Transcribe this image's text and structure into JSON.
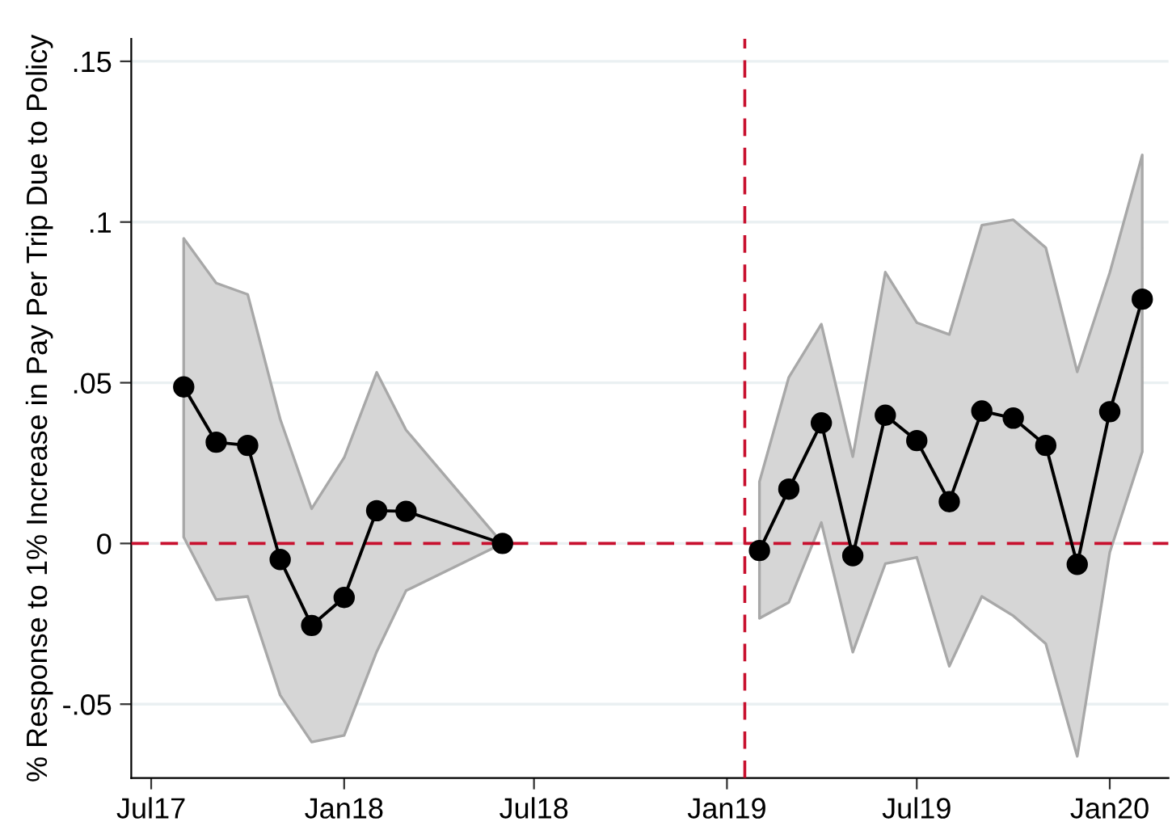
{
  "chart_data": {
    "type": "line",
    "ylabel": "% Response to 1% Increase in Pay Per Trip Due to Policy",
    "series": [
      {
        "color": "#000000",
        "x": [
          "2017-08-01",
          "2017-09-01",
          "2017-10-01",
          "2017-11-01",
          "2017-12-01",
          "2018-01-01",
          "2018-02-01",
          "2018-03-01",
          "2018-06-01"
        ],
        "values": [
          0.0487,
          0.0315,
          0.0305,
          -0.005,
          -0.0255,
          -0.0168,
          0.0102,
          0.01,
          0
        ],
        "lower": [
          0.002,
          -0.0175,
          -0.0165,
          -0.0472,
          -0.0618,
          -0.0597,
          -0.0337,
          -0.0147,
          0
        ],
        "upper": [
          0.0949,
          0.081,
          0.0775,
          0.0387,
          0.0108,
          0.0267,
          0.0532,
          0.0353,
          0
        ]
      },
      {
        "color": "#000000",
        "x": [
          "2019-02-01",
          "2019-03-01",
          "2019-04-01",
          "2019-05-01",
          "2019-06-01",
          "2019-07-01",
          "2019-08-01",
          "2019-09-01",
          "2019-10-01",
          "2019-11-01",
          "2019-12-01",
          "2020-01-01",
          "2020-02-01"
        ],
        "values": [
          -0.0022,
          0.0169,
          0.0375,
          -0.0038,
          0.0399,
          0.032,
          0.013,
          0.0412,
          0.039,
          0.0305,
          -0.0065,
          0.041,
          0.076
        ],
        "lower": [
          -0.0233,
          -0.0183,
          0.0065,
          -0.0338,
          -0.0063,
          -0.0043,
          -0.0382,
          -0.0165,
          -0.0225,
          -0.0312,
          -0.0662,
          -0.0028,
          0.0285
        ],
        "upper": [
          0.0192,
          0.0517,
          0.0682,
          0.027,
          0.0844,
          0.0687,
          0.065,
          0.099,
          0.1007,
          0.092,
          0.0534,
          0.0842,
          0.1209
        ]
      }
    ],
    "xlim": [
      "2017-06-12",
      "2020-02-26"
    ],
    "xticks": [
      {
        "value": "2017-07-01",
        "label": "Jul17"
      },
      {
        "value": "2018-01-01",
        "label": "Jan18"
      },
      {
        "value": "2018-07-01",
        "label": "Jul18"
      },
      {
        "value": "2019-01-01",
        "label": "Jan19"
      },
      {
        "value": "2019-07-01",
        "label": "Jul19"
      },
      {
        "value": "2020-01-01",
        "label": "Jan20"
      }
    ],
    "ylim": [
      -0.073,
      0.157
    ],
    "yticks": [
      {
        "value": -0.05,
        "label": "-.05"
      },
      {
        "value": 0,
        "label": "0"
      },
      {
        "value": 0.05,
        "label": ".05"
      },
      {
        "value": 0.1,
        "label": ".1"
      },
      {
        "value": 0.15,
        "label": ".15"
      }
    ],
    "ref_lines": [
      {
        "axis": "y",
        "value": 0,
        "color": "#c8102e",
        "line_style": "dashed"
      },
      {
        "axis": "x",
        "value": "2019-01-18",
        "color": "#c8102e",
        "line_style": "dashed"
      }
    ],
    "grid": "y",
    "marker": "circle",
    "line_style": "solid",
    "legend": false
  }
}
